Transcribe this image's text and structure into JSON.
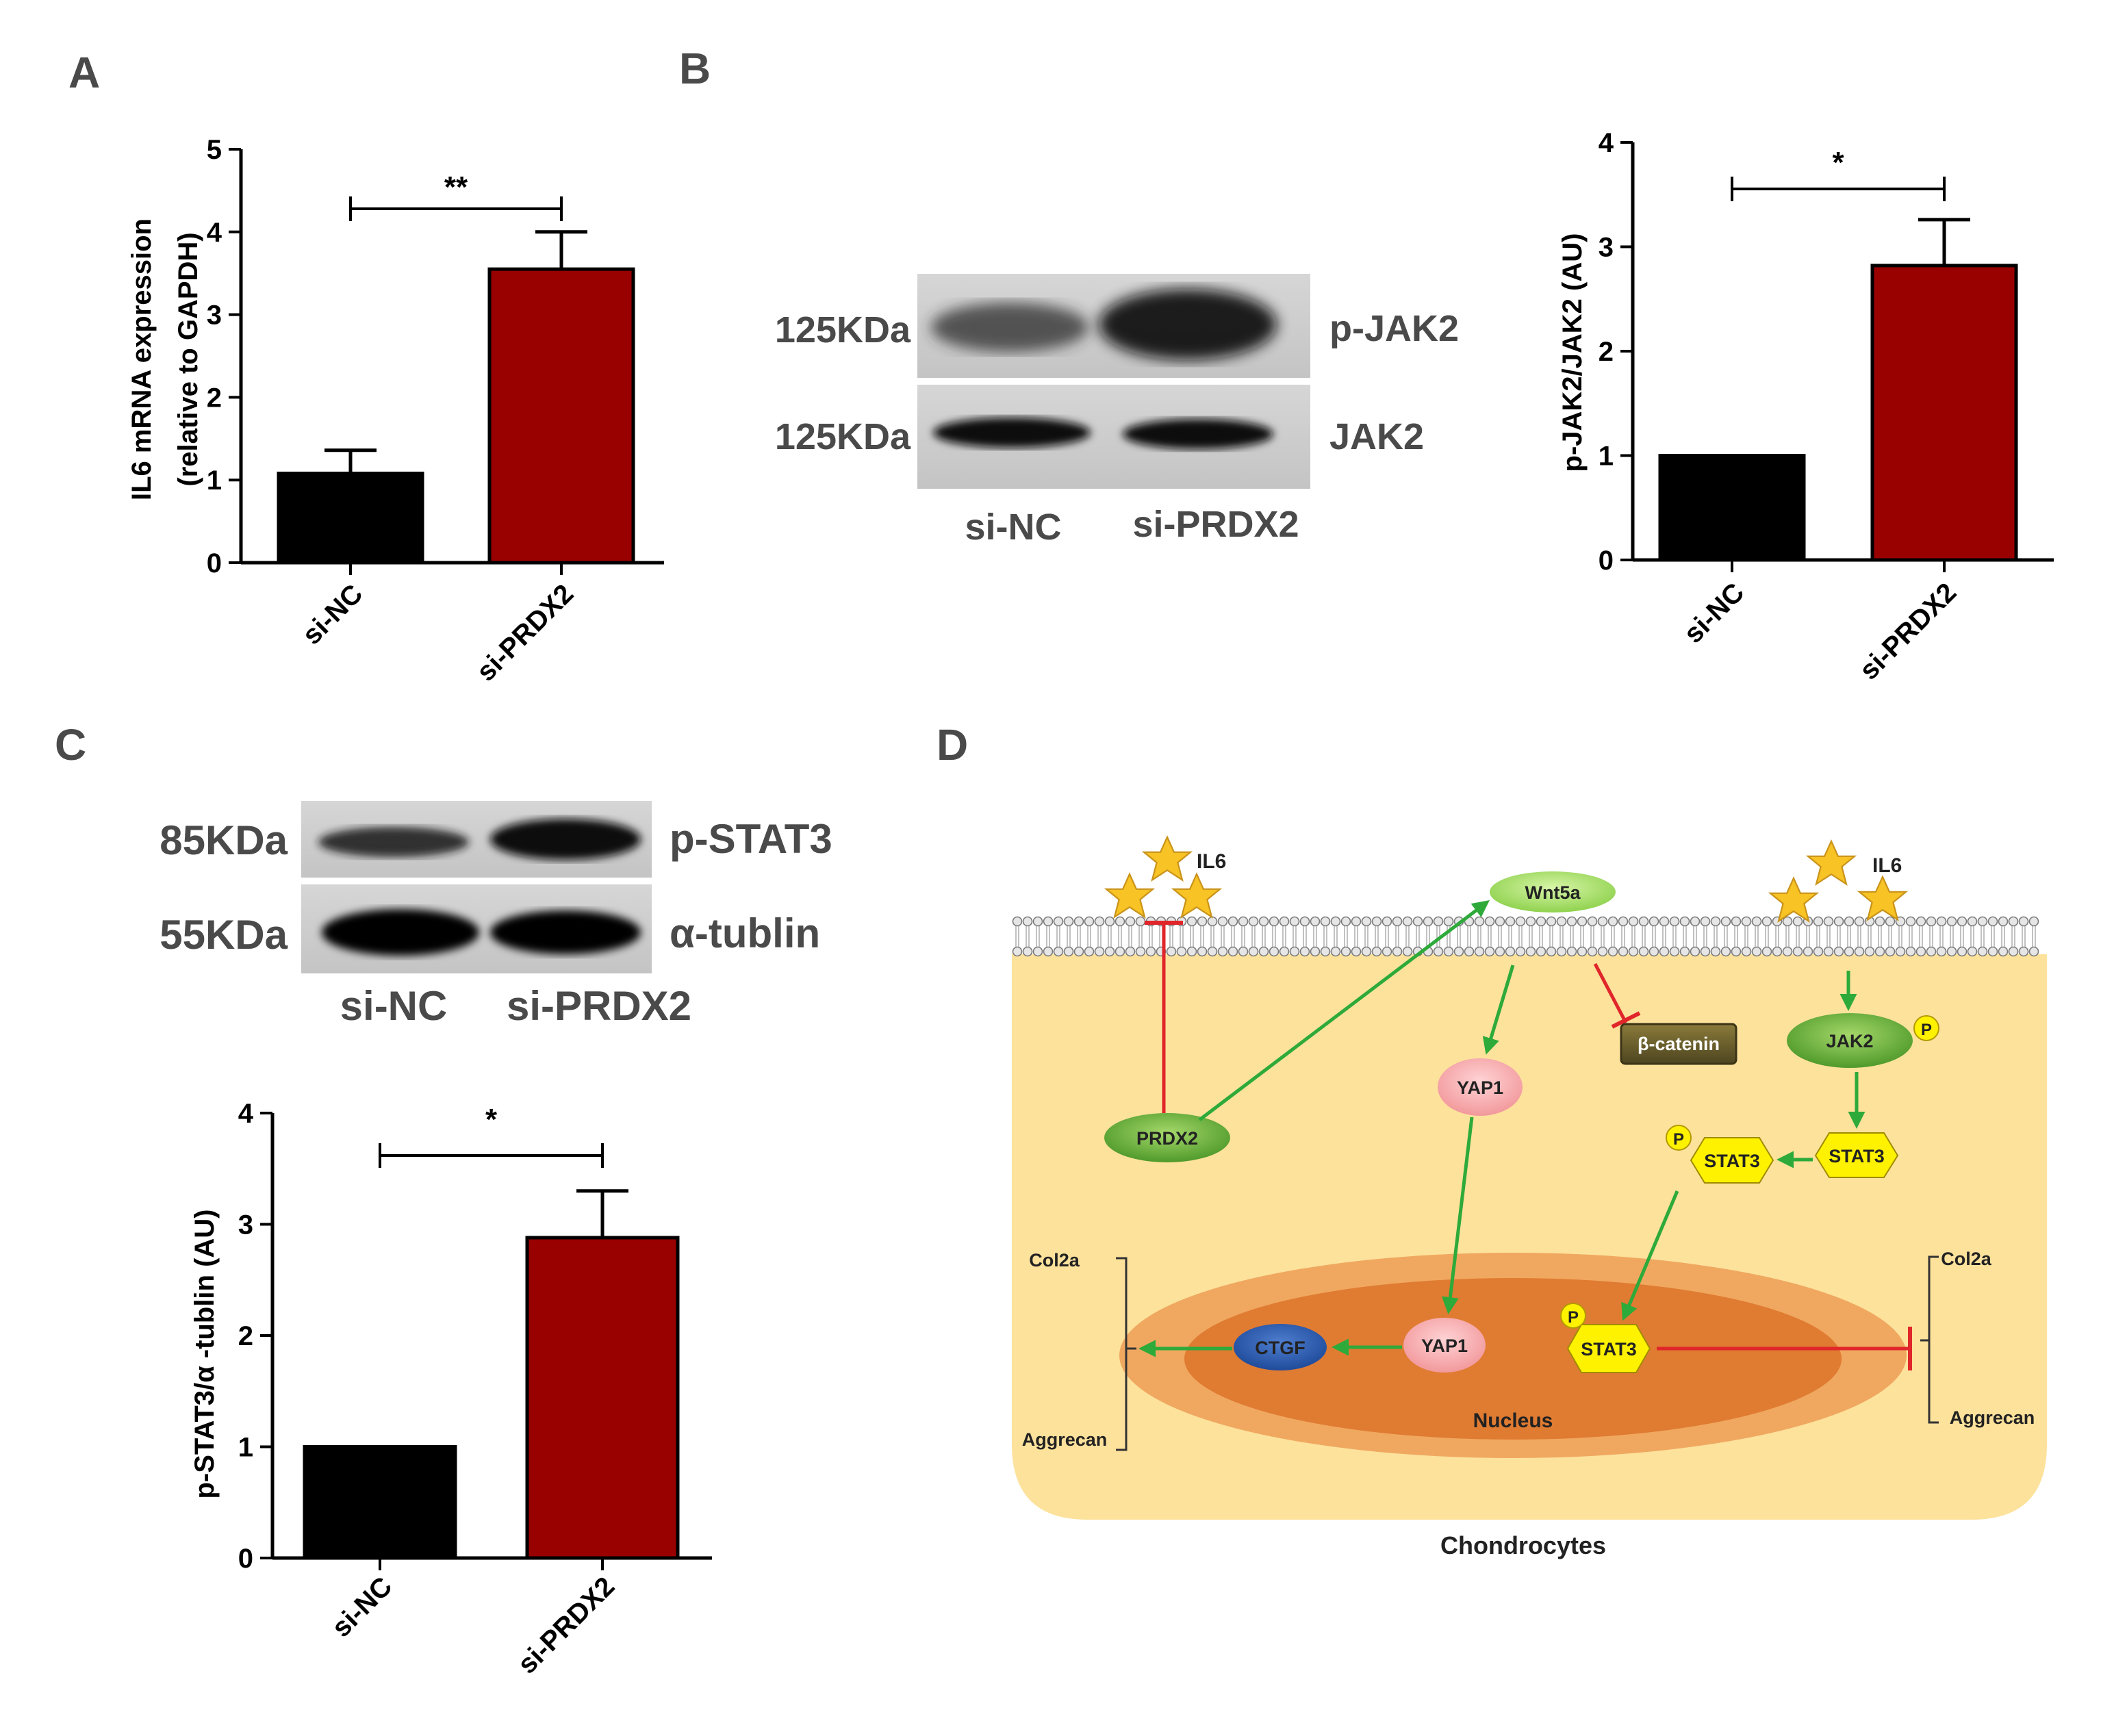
{
  "panels": {
    "A": "A",
    "B": "B",
    "C": "C",
    "D": "D"
  },
  "chart_data": [
    {
      "type": "bar",
      "panel": "A",
      "categories": [
        "si-NC",
        "si-PRDX2"
      ],
      "values": [
        1.08,
        3.55
      ],
      "errors": [
        0.28,
        0.45
      ],
      "colors": [
        "#000000",
        "#990000"
      ],
      "ylabel_line1": "IL6 mRNA expression",
      "ylabel_line2": "(relative to GAPDH)",
      "ylim": [
        0,
        5
      ],
      "yticks": [
        "0",
        "1",
        "2",
        "3",
        "4",
        "5"
      ],
      "significance": "**"
    },
    {
      "type": "bar",
      "panel": "B",
      "categories": [
        "si-NC",
        "si-PRDX2"
      ],
      "values": [
        1.0,
        2.82
      ],
      "errors": [
        0.0,
        0.44
      ],
      "colors": [
        "#000000",
        "#990000"
      ],
      "ylabel": "p-JAK2/JAK2 (AU)",
      "ylim": [
        0,
        4
      ],
      "yticks": [
        "0",
        "1",
        "2",
        "3",
        "4"
      ],
      "significance": "*"
    },
    {
      "type": "bar",
      "panel": "C",
      "categories": [
        "si-NC",
        "si-PRDX2"
      ],
      "values": [
        1.0,
        2.88
      ],
      "errors": [
        0.0,
        0.42
      ],
      "colors": [
        "#000000",
        "#990000"
      ],
      "ylabel": "p-STAT3/α -tublin (AU)",
      "ylim": [
        0,
        4
      ],
      "yticks": [
        "0",
        "1",
        "2",
        "3",
        "4"
      ],
      "significance": "*"
    }
  ],
  "western_blots": {
    "B": {
      "rows": [
        {
          "size": "125KDa",
          "protein": "p-JAK2",
          "intensity": [
            0.55,
            0.85
          ]
        },
        {
          "size": "125KDa",
          "protein": "JAK2",
          "intensity": [
            0.9,
            0.88
          ]
        }
      ],
      "lanes": [
        "si-NC",
        "si-PRDX2"
      ]
    },
    "C": {
      "rows": [
        {
          "size": "85KDa",
          "protein": "p-STAT3",
          "intensity": [
            0.6,
            0.85
          ]
        },
        {
          "size": "55KDa",
          "protein": "α-tublin",
          "intensity": [
            0.95,
            0.92
          ]
        }
      ],
      "lanes": [
        "si-NC",
        "si-PRDX2"
      ]
    }
  },
  "diagram": {
    "il6_left": "IL6",
    "il6_right": "IL6",
    "wnt5a": "Wnt5a",
    "beta_catenin": "β-catenin",
    "jak2": "JAK2",
    "p": "P",
    "yap1": "YAP1",
    "prdx2": "PRDX2",
    "stat3": "STAT3",
    "ctgf": "CTGF",
    "col2a": "Col2a",
    "aggrecan": "Aggrecan",
    "nucleus": "Nucleus",
    "chondrocytes": "Chondrocytes"
  }
}
